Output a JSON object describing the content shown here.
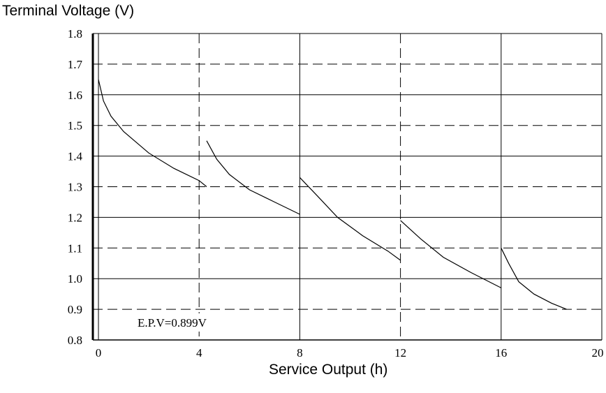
{
  "chart_data": {
    "type": "line",
    "ylabel": "Terminal Voltage (V)",
    "xlabel": "Service Output (h)",
    "xlim": [
      0,
      20
    ],
    "ylim": [
      0.8,
      1.8
    ],
    "xticks": [
      "0",
      "4",
      "8",
      "12",
      "16",
      "20"
    ],
    "yticks": [
      "0.8",
      "0.9",
      "1.0",
      "1.1",
      "1.2",
      "1.3",
      "1.4",
      "1.5",
      "1.6",
      "1.7",
      "1.8"
    ],
    "grid": true,
    "annotation": "E.P.V=0.899V",
    "series": [
      {
        "points": [
          [
            0.0,
            1.65
          ],
          [
            0.2,
            1.58
          ],
          [
            0.5,
            1.53
          ],
          [
            1.0,
            1.48
          ],
          [
            2.0,
            1.41
          ],
          [
            3.0,
            1.36
          ],
          [
            4.0,
            1.32
          ],
          [
            4.3,
            1.3
          ]
        ]
      },
      {
        "points": [
          [
            4.3,
            1.45
          ],
          [
            4.7,
            1.39
          ],
          [
            5.2,
            1.34
          ],
          [
            6.0,
            1.29
          ],
          [
            7.0,
            1.25
          ],
          [
            8.0,
            1.21
          ]
        ]
      },
      {
        "points": [
          [
            8.0,
            1.33
          ],
          [
            8.7,
            1.27
          ],
          [
            9.5,
            1.2
          ],
          [
            10.5,
            1.14
          ],
          [
            11.5,
            1.09
          ],
          [
            12.0,
            1.06
          ]
        ]
      },
      {
        "points": [
          [
            12.0,
            1.19
          ],
          [
            12.8,
            1.13
          ],
          [
            13.7,
            1.07
          ],
          [
            14.8,
            1.02
          ],
          [
            16.0,
            0.97
          ]
        ]
      },
      {
        "points": [
          [
            16.0,
            1.1
          ],
          [
            16.3,
            1.05
          ],
          [
            16.7,
            0.99
          ],
          [
            17.3,
            0.95
          ],
          [
            18.0,
            0.92
          ],
          [
            18.6,
            0.9
          ]
        ]
      }
    ]
  }
}
